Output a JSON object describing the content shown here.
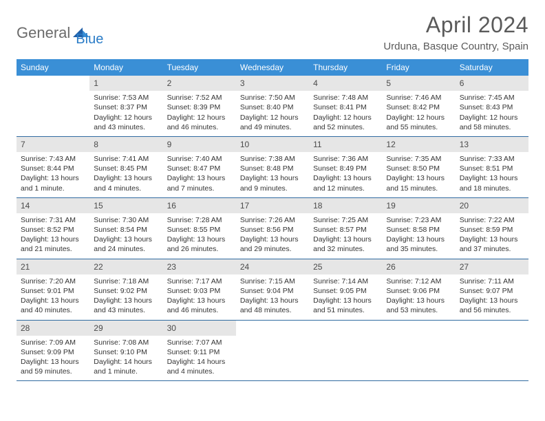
{
  "brand": {
    "part1": "General",
    "part2": "Blue"
  },
  "title": "April 2024",
  "location": "Urduna, Basque Country, Spain",
  "colors": {
    "header_bg": "#3a8fd6",
    "header_text": "#ffffff",
    "daynum_bg": "#e6e6e6",
    "row_border": "#2f6aa0",
    "brand_gray": "#6b6b6b",
    "brand_blue": "#2a7cc7",
    "title_color": "#5a5a5a",
    "body_text": "#333333",
    "page_bg": "#ffffff"
  },
  "typography": {
    "title_fontsize": 32,
    "location_fontsize": 15,
    "dayhead_fontsize": 12,
    "cell_fontsize": 10.5
  },
  "day_headers": [
    "Sunday",
    "Monday",
    "Tuesday",
    "Wednesday",
    "Thursday",
    "Friday",
    "Saturday"
  ],
  "weeks": [
    [
      {
        "num": "",
        "sunrise": "",
        "sunset": "",
        "daylight": ""
      },
      {
        "num": "1",
        "sunrise": "Sunrise: 7:53 AM",
        "sunset": "Sunset: 8:37 PM",
        "daylight": "Daylight: 12 hours and 43 minutes."
      },
      {
        "num": "2",
        "sunrise": "Sunrise: 7:52 AM",
        "sunset": "Sunset: 8:39 PM",
        "daylight": "Daylight: 12 hours and 46 minutes."
      },
      {
        "num": "3",
        "sunrise": "Sunrise: 7:50 AM",
        "sunset": "Sunset: 8:40 PM",
        "daylight": "Daylight: 12 hours and 49 minutes."
      },
      {
        "num": "4",
        "sunrise": "Sunrise: 7:48 AM",
        "sunset": "Sunset: 8:41 PM",
        "daylight": "Daylight: 12 hours and 52 minutes."
      },
      {
        "num": "5",
        "sunrise": "Sunrise: 7:46 AM",
        "sunset": "Sunset: 8:42 PM",
        "daylight": "Daylight: 12 hours and 55 minutes."
      },
      {
        "num": "6",
        "sunrise": "Sunrise: 7:45 AM",
        "sunset": "Sunset: 8:43 PM",
        "daylight": "Daylight: 12 hours and 58 minutes."
      }
    ],
    [
      {
        "num": "7",
        "sunrise": "Sunrise: 7:43 AM",
        "sunset": "Sunset: 8:44 PM",
        "daylight": "Daylight: 13 hours and 1 minute."
      },
      {
        "num": "8",
        "sunrise": "Sunrise: 7:41 AM",
        "sunset": "Sunset: 8:45 PM",
        "daylight": "Daylight: 13 hours and 4 minutes."
      },
      {
        "num": "9",
        "sunrise": "Sunrise: 7:40 AM",
        "sunset": "Sunset: 8:47 PM",
        "daylight": "Daylight: 13 hours and 7 minutes."
      },
      {
        "num": "10",
        "sunrise": "Sunrise: 7:38 AM",
        "sunset": "Sunset: 8:48 PM",
        "daylight": "Daylight: 13 hours and 9 minutes."
      },
      {
        "num": "11",
        "sunrise": "Sunrise: 7:36 AM",
        "sunset": "Sunset: 8:49 PM",
        "daylight": "Daylight: 13 hours and 12 minutes."
      },
      {
        "num": "12",
        "sunrise": "Sunrise: 7:35 AM",
        "sunset": "Sunset: 8:50 PM",
        "daylight": "Daylight: 13 hours and 15 minutes."
      },
      {
        "num": "13",
        "sunrise": "Sunrise: 7:33 AM",
        "sunset": "Sunset: 8:51 PM",
        "daylight": "Daylight: 13 hours and 18 minutes."
      }
    ],
    [
      {
        "num": "14",
        "sunrise": "Sunrise: 7:31 AM",
        "sunset": "Sunset: 8:52 PM",
        "daylight": "Daylight: 13 hours and 21 minutes."
      },
      {
        "num": "15",
        "sunrise": "Sunrise: 7:30 AM",
        "sunset": "Sunset: 8:54 PM",
        "daylight": "Daylight: 13 hours and 24 minutes."
      },
      {
        "num": "16",
        "sunrise": "Sunrise: 7:28 AM",
        "sunset": "Sunset: 8:55 PM",
        "daylight": "Daylight: 13 hours and 26 minutes."
      },
      {
        "num": "17",
        "sunrise": "Sunrise: 7:26 AM",
        "sunset": "Sunset: 8:56 PM",
        "daylight": "Daylight: 13 hours and 29 minutes."
      },
      {
        "num": "18",
        "sunrise": "Sunrise: 7:25 AM",
        "sunset": "Sunset: 8:57 PM",
        "daylight": "Daylight: 13 hours and 32 minutes."
      },
      {
        "num": "19",
        "sunrise": "Sunrise: 7:23 AM",
        "sunset": "Sunset: 8:58 PM",
        "daylight": "Daylight: 13 hours and 35 minutes."
      },
      {
        "num": "20",
        "sunrise": "Sunrise: 7:22 AM",
        "sunset": "Sunset: 8:59 PM",
        "daylight": "Daylight: 13 hours and 37 minutes."
      }
    ],
    [
      {
        "num": "21",
        "sunrise": "Sunrise: 7:20 AM",
        "sunset": "Sunset: 9:01 PM",
        "daylight": "Daylight: 13 hours and 40 minutes."
      },
      {
        "num": "22",
        "sunrise": "Sunrise: 7:18 AM",
        "sunset": "Sunset: 9:02 PM",
        "daylight": "Daylight: 13 hours and 43 minutes."
      },
      {
        "num": "23",
        "sunrise": "Sunrise: 7:17 AM",
        "sunset": "Sunset: 9:03 PM",
        "daylight": "Daylight: 13 hours and 46 minutes."
      },
      {
        "num": "24",
        "sunrise": "Sunrise: 7:15 AM",
        "sunset": "Sunset: 9:04 PM",
        "daylight": "Daylight: 13 hours and 48 minutes."
      },
      {
        "num": "25",
        "sunrise": "Sunrise: 7:14 AM",
        "sunset": "Sunset: 9:05 PM",
        "daylight": "Daylight: 13 hours and 51 minutes."
      },
      {
        "num": "26",
        "sunrise": "Sunrise: 7:12 AM",
        "sunset": "Sunset: 9:06 PM",
        "daylight": "Daylight: 13 hours and 53 minutes."
      },
      {
        "num": "27",
        "sunrise": "Sunrise: 7:11 AM",
        "sunset": "Sunset: 9:07 PM",
        "daylight": "Daylight: 13 hours and 56 minutes."
      }
    ],
    [
      {
        "num": "28",
        "sunrise": "Sunrise: 7:09 AM",
        "sunset": "Sunset: 9:09 PM",
        "daylight": "Daylight: 13 hours and 59 minutes."
      },
      {
        "num": "29",
        "sunrise": "Sunrise: 7:08 AM",
        "sunset": "Sunset: 9:10 PM",
        "daylight": "Daylight: 14 hours and 1 minute."
      },
      {
        "num": "30",
        "sunrise": "Sunrise: 7:07 AM",
        "sunset": "Sunset: 9:11 PM",
        "daylight": "Daylight: 14 hours and 4 minutes."
      },
      {
        "num": "",
        "sunrise": "",
        "sunset": "",
        "daylight": ""
      },
      {
        "num": "",
        "sunrise": "",
        "sunset": "",
        "daylight": ""
      },
      {
        "num": "",
        "sunrise": "",
        "sunset": "",
        "daylight": ""
      },
      {
        "num": "",
        "sunrise": "",
        "sunset": "",
        "daylight": ""
      }
    ]
  ]
}
